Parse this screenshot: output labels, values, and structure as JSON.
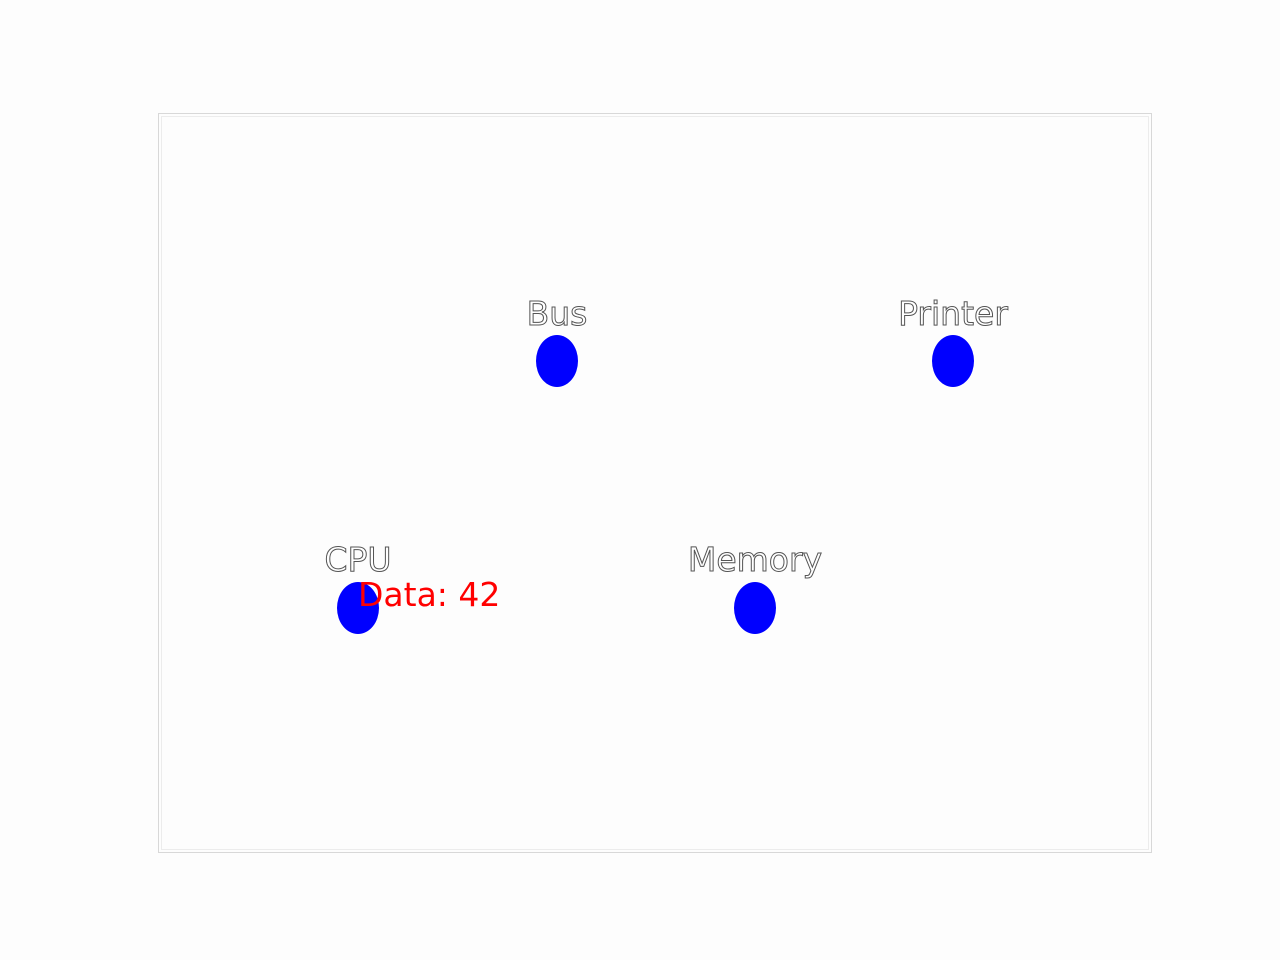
{
  "colors": {
    "node": "#0000ff",
    "data_text": "#ff0000"
  },
  "nodes": [
    {
      "label": "Bus"
    },
    {
      "label": "Printer"
    },
    {
      "label": "CPU"
    },
    {
      "label": "Memory"
    }
  ],
  "data_label": "Data: 42"
}
